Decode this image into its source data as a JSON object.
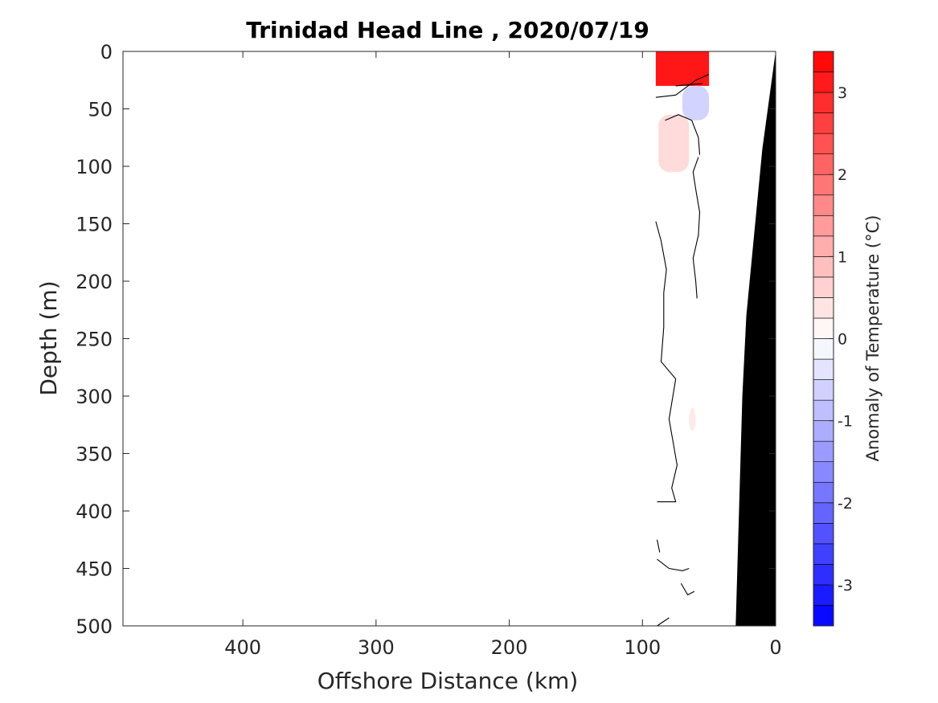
{
  "chart_data": {
    "type": "heatmap",
    "title": "Trinidad Head Line , 2020/07/19",
    "xlabel": "Offshore Distance (km)",
    "ylabel": "Depth (m)",
    "xlim": [
      490,
      0
    ],
    "ylim": [
      0,
      500
    ],
    "x_reversed": true,
    "y_reversed": true,
    "x_ticks": [
      400,
      300,
      200,
      100,
      0
    ],
    "y_ticks": [
      0,
      50,
      100,
      150,
      200,
      250,
      300,
      350,
      400,
      450,
      500
    ],
    "colorbar": {
      "label": "Anomaly of Temperature (°C)",
      "range": [
        -3.5,
        3.5
      ],
      "step": 0.25,
      "ticks": [
        -3,
        -2,
        -1,
        0,
        1,
        2,
        3
      ],
      "low_color": "#0000ff",
      "mid_color": "#ffffff",
      "high_color": "#ff0000"
    },
    "anomaly_regions": [
      {
        "x_range": [
          90,
          50
        ],
        "depth_range": [
          0,
          30
        ],
        "anomaly": 3.2
      },
      {
        "x_range": [
          70,
          50
        ],
        "depth_range": [
          30,
          60
        ],
        "anomaly": -0.6
      },
      {
        "x_range": [
          88,
          65
        ],
        "depth_range": [
          55,
          105
        ],
        "anomaly": 0.5
      },
      {
        "x_range": [
          65,
          60
        ],
        "depth_range": [
          310,
          330
        ],
        "anomaly": 0.3
      }
    ],
    "zero_contours": [
      [
        [
          90,
          40
        ],
        [
          75,
          38
        ],
        [
          60,
          25
        ],
        [
          50,
          20
        ]
      ],
      [
        [
          75,
          30
        ],
        [
          55,
          28
        ]
      ],
      [
        [
          83,
          60
        ],
        [
          73,
          55
        ],
        [
          63,
          60
        ],
        [
          58,
          75
        ],
        [
          57,
          90
        ]
      ],
      [
        [
          58,
          92
        ],
        [
          62,
          105
        ],
        [
          60,
          120
        ],
        [
          57,
          140
        ],
        [
          58,
          160
        ],
        [
          62,
          180
        ],
        [
          60,
          200
        ],
        [
          59,
          215
        ]
      ],
      [
        [
          90,
          148
        ],
        [
          86,
          165
        ],
        [
          82,
          190
        ],
        [
          84,
          210
        ],
        [
          84,
          240
        ],
        [
          86,
          270
        ],
        [
          75,
          285
        ],
        [
          80,
          320
        ],
        [
          74,
          360
        ],
        [
          78,
          380
        ],
        [
          75,
          392
        ],
        [
          89,
          392
        ]
      ],
      [
        [
          89,
          425
        ],
        [
          87,
          436
        ]
      ],
      [
        [
          89,
          442
        ],
        [
          80,
          450
        ],
        [
          70,
          452
        ],
        [
          65,
          450
        ]
      ],
      [
        [
          71,
          463
        ],
        [
          66,
          473
        ],
        [
          61,
          470
        ]
      ],
      [
        [
          89,
          500
        ],
        [
          80,
          493
        ]
      ]
    ],
    "bathymetry": [
      [
        0,
        0
      ],
      [
        10,
        85
      ],
      [
        22,
        230
      ],
      [
        25,
        300
      ],
      [
        30,
        500
      ]
    ],
    "bathymetry_color": "#000000"
  }
}
